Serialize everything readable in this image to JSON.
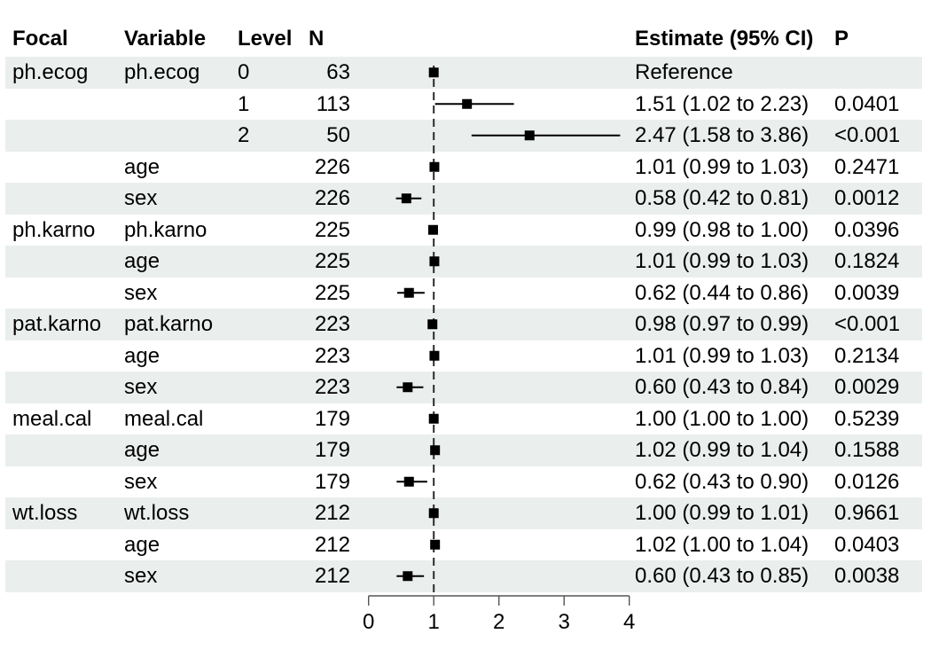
{
  "colors": {
    "stripe": "#eaeeec",
    "marker": "#000000",
    "axis": "#555555",
    "reference_line": "#2b2b2b",
    "text": "#000000"
  },
  "columns": {
    "focal": "Focal",
    "variable": "Variable",
    "level": "Level",
    "n": "N",
    "estimate": "Estimate (95% CI)",
    "p": "P"
  },
  "chart_data": {
    "type": "scatter",
    "subtype": "forest-plot",
    "title": "",
    "xlabel": "",
    "ylabel": "",
    "x_axis": {
      "ticks": [
        "0",
        "1",
        "2",
        "3",
        "4"
      ],
      "tick_values": [
        0,
        1,
        2,
        3,
        4
      ],
      "range": [
        0,
        4
      ],
      "reference_line": 1,
      "grid": false
    },
    "legend": null,
    "rows": [
      {
        "focal": "ph.ecog",
        "variable": "ph.ecog",
        "level": "0",
        "n": "63",
        "estimate_label": "Reference",
        "p": "",
        "estimate": 1.0,
        "ci_low": null,
        "ci_high": null,
        "reference": true
      },
      {
        "focal": "",
        "variable": "",
        "level": "1",
        "n": "113",
        "estimate_label": "1.51 (1.02 to 2.23)",
        "p": "0.0401",
        "estimate": 1.51,
        "ci_low": 1.02,
        "ci_high": 2.23,
        "reference": false
      },
      {
        "focal": "",
        "variable": "",
        "level": "2",
        "n": "50",
        "estimate_label": "2.47 (1.58 to 3.86)",
        "p": "<0.001",
        "estimate": 2.47,
        "ci_low": 1.58,
        "ci_high": 3.86,
        "reference": false
      },
      {
        "focal": "",
        "variable": "age",
        "level": "",
        "n": "226",
        "estimate_label": "1.01 (0.99 to 1.03)",
        "p": "0.2471",
        "estimate": 1.01,
        "ci_low": 0.99,
        "ci_high": 1.03,
        "reference": false
      },
      {
        "focal": "",
        "variable": "sex",
        "level": "",
        "n": "226",
        "estimate_label": "0.58 (0.42 to 0.81)",
        "p": "0.0012",
        "estimate": 0.58,
        "ci_low": 0.42,
        "ci_high": 0.81,
        "reference": false
      },
      {
        "focal": "ph.karno",
        "variable": "ph.karno",
        "level": "",
        "n": "225",
        "estimate_label": "0.99 (0.98 to 1.00)",
        "p": "0.0396",
        "estimate": 0.99,
        "ci_low": 0.98,
        "ci_high": 1.0,
        "reference": false
      },
      {
        "focal": "",
        "variable": "age",
        "level": "",
        "n": "225",
        "estimate_label": "1.01 (0.99 to 1.03)",
        "p": "0.1824",
        "estimate": 1.01,
        "ci_low": 0.99,
        "ci_high": 1.03,
        "reference": false
      },
      {
        "focal": "",
        "variable": "sex",
        "level": "",
        "n": "225",
        "estimate_label": "0.62 (0.44 to 0.86)",
        "p": "0.0039",
        "estimate": 0.62,
        "ci_low": 0.44,
        "ci_high": 0.86,
        "reference": false
      },
      {
        "focal": "pat.karno",
        "variable": "pat.karno",
        "level": "",
        "n": "223",
        "estimate_label": "0.98 (0.97 to 0.99)",
        "p": "<0.001",
        "estimate": 0.98,
        "ci_low": 0.97,
        "ci_high": 0.99,
        "reference": false
      },
      {
        "focal": "",
        "variable": "age",
        "level": "",
        "n": "223",
        "estimate_label": "1.01 (0.99 to 1.03)",
        "p": "0.2134",
        "estimate": 1.01,
        "ci_low": 0.99,
        "ci_high": 1.03,
        "reference": false
      },
      {
        "focal": "",
        "variable": "sex",
        "level": "",
        "n": "223",
        "estimate_label": "0.60 (0.43 to 0.84)",
        "p": "0.0029",
        "estimate": 0.6,
        "ci_low": 0.43,
        "ci_high": 0.84,
        "reference": false
      },
      {
        "focal": "meal.cal",
        "variable": "meal.cal",
        "level": "",
        "n": "179",
        "estimate_label": "1.00 (1.00 to 1.00)",
        "p": "0.5239",
        "estimate": 1.0,
        "ci_low": 1.0,
        "ci_high": 1.0,
        "reference": false
      },
      {
        "focal": "",
        "variable": "age",
        "level": "",
        "n": "179",
        "estimate_label": "1.02 (0.99 to 1.04)",
        "p": "0.1588",
        "estimate": 1.02,
        "ci_low": 0.99,
        "ci_high": 1.04,
        "reference": false
      },
      {
        "focal": "",
        "variable": "sex",
        "level": "",
        "n": "179",
        "estimate_label": "0.62 (0.43 to 0.90)",
        "p": "0.0126",
        "estimate": 0.62,
        "ci_low": 0.43,
        "ci_high": 0.9,
        "reference": false
      },
      {
        "focal": "wt.loss",
        "variable": "wt.loss",
        "level": "",
        "n": "212",
        "estimate_label": "1.00 (0.99 to 1.01)",
        "p": "0.9661",
        "estimate": 1.0,
        "ci_low": 0.99,
        "ci_high": 1.01,
        "reference": false
      },
      {
        "focal": "",
        "variable": "age",
        "level": "",
        "n": "212",
        "estimate_label": "1.02 (1.00 to 1.04)",
        "p": "0.0403",
        "estimate": 1.02,
        "ci_low": 1.0,
        "ci_high": 1.04,
        "reference": false
      },
      {
        "focal": "",
        "variable": "sex",
        "level": "",
        "n": "212",
        "estimate_label": "0.60 (0.43 to 0.85)",
        "p": "0.0038",
        "estimate": 0.6,
        "ci_low": 0.43,
        "ci_high": 0.85,
        "reference": false
      }
    ]
  }
}
